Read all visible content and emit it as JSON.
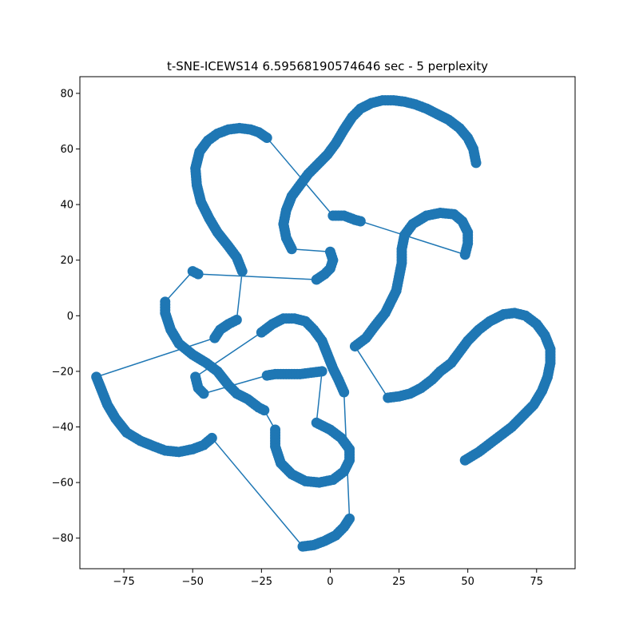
{
  "chart_data": {
    "type": "line",
    "title": "t-SNE-ICEWS14 6.59568190574646 sec  - 5 perplexity",
    "xlabel": "",
    "ylabel": "",
    "xlim": [
      -91,
      89
    ],
    "ylim": [
      -91,
      86
    ],
    "xticks": [
      -75,
      -50,
      -25,
      0,
      25,
      50,
      75
    ],
    "yticks": [
      -80,
      -60,
      -40,
      -20,
      0,
      20,
      40,
      60,
      80
    ],
    "xtick_labels": [
      "−75",
      "−50",
      "−25",
      "0",
      "25",
      "50",
      "75"
    ],
    "ytick_labels": [
      "−80",
      "−60",
      "−40",
      "−20",
      "0",
      "20",
      "40",
      "60",
      "80"
    ],
    "grid": false,
    "legend": "none",
    "color": "#1f77b4",
    "series": [
      {
        "marker": "circle",
        "points": [
          [
            53,
            55
          ],
          [
            52,
            60
          ],
          [
            50,
            64
          ],
          [
            47,
            67.5
          ],
          [
            43,
            70.5
          ],
          [
            39,
            72.5
          ],
          [
            35,
            74.5
          ],
          [
            31,
            76
          ],
          [
            27,
            77
          ],
          [
            23,
            77.5
          ],
          [
            19,
            77.5
          ],
          [
            15,
            76.5
          ],
          [
            11,
            74.5
          ],
          [
            8,
            71.5
          ],
          [
            5,
            67
          ],
          [
            2,
            62
          ],
          [
            -1,
            58
          ],
          [
            -5,
            54
          ],
          [
            -8,
            51
          ],
          [
            -11,
            47
          ],
          [
            -14,
            43
          ],
          [
            -16,
            38
          ],
          [
            -17,
            33
          ],
          [
            -16,
            28
          ],
          [
            -14,
            24
          ],
          [
            0,
            23
          ],
          [
            1,
            20
          ],
          [
            0,
            17
          ],
          [
            -2,
            15
          ],
          [
            -5,
            13
          ],
          [
            -48,
            15
          ],
          [
            -50,
            16
          ],
          [
            -60,
            5
          ],
          [
            -60,
            1
          ],
          [
            -58,
            -5
          ],
          [
            -55,
            -10
          ],
          [
            -50,
            -14
          ],
          [
            -45,
            -17
          ],
          [
            -41,
            -20
          ],
          [
            -37,
            -25
          ],
          [
            -34,
            -28
          ],
          [
            -30,
            -30
          ],
          [
            -26,
            -33
          ],
          [
            -24,
            -34
          ],
          [
            -20,
            -41
          ],
          [
            -20,
            -47
          ],
          [
            -18,
            -53
          ],
          [
            -14,
            -57
          ],
          [
            -9,
            -59.5
          ],
          [
            -4,
            -60
          ],
          [
            1,
            -59
          ],
          [
            5,
            -56
          ],
          [
            7,
            -52
          ],
          [
            7,
            -48
          ],
          [
            4,
            -44
          ],
          [
            0,
            -41
          ],
          [
            -5,
            -38.5
          ],
          [
            -3,
            -20
          ],
          [
            -7,
            -20.5
          ],
          [
            -11,
            -21
          ],
          [
            -15,
            -21
          ],
          [
            -20,
            -21
          ],
          [
            -23,
            -21.5
          ],
          [
            -46,
            -28
          ],
          [
            -48,
            -26
          ],
          [
            -49,
            -22
          ],
          [
            -25,
            -6
          ],
          [
            -21,
            -3
          ],
          [
            -17,
            -1
          ],
          [
            -13,
            -1
          ],
          [
            -9,
            -2
          ],
          [
            -6,
            -5
          ],
          [
            -3,
            -9
          ],
          [
            -1,
            -14
          ],
          [
            1,
            -19
          ],
          [
            3,
            -23
          ],
          [
            5,
            -27.5
          ],
          [
            7,
            -73
          ],
          [
            5,
            -76
          ],
          [
            2,
            -79
          ],
          [
            -2,
            -81
          ],
          [
            -6,
            -82.5
          ],
          [
            -10,
            -83
          ],
          [
            -43,
            -44
          ],
          [
            -46,
            -46.5
          ],
          [
            -50,
            -48
          ],
          [
            -55,
            -49
          ],
          [
            -60,
            -48.5
          ],
          [
            -64,
            -47
          ],
          [
            -69,
            -45
          ],
          [
            -74,
            -42
          ],
          [
            -78,
            -37
          ],
          [
            -81,
            -32
          ],
          [
            -83,
            -27
          ],
          [
            -85,
            -22
          ],
          [
            -42,
            -8
          ],
          [
            -40,
            -5
          ],
          [
            -37,
            -3
          ],
          [
            -34,
            -1.5
          ],
          [
            -32,
            16
          ],
          [
            -34,
            21
          ],
          [
            -37,
            25
          ],
          [
            -41,
            30
          ],
          [
            -44,
            35
          ],
          [
            -47,
            41
          ],
          [
            -48.5,
            47
          ],
          [
            -49,
            53
          ],
          [
            -47.5,
            59
          ],
          [
            -44.5,
            63
          ],
          [
            -41,
            65.5
          ],
          [
            -37,
            67
          ],
          [
            -33,
            67.5
          ],
          [
            -29,
            67
          ],
          [
            -26,
            66
          ],
          [
            -23,
            64
          ],
          [
            1,
            36
          ],
          [
            5,
            36
          ],
          [
            9,
            34.5
          ],
          [
            11,
            34
          ],
          [
            49,
            22
          ],
          [
            50,
            26
          ],
          [
            50,
            30
          ],
          [
            48,
            34
          ],
          [
            45,
            36.5
          ],
          [
            40,
            37
          ],
          [
            35,
            36
          ],
          [
            30,
            33
          ],
          [
            27,
            29
          ],
          [
            26,
            24
          ],
          [
            26,
            19
          ],
          [
            25,
            14
          ],
          [
            24,
            9
          ],
          [
            22,
            5
          ],
          [
            20,
            1
          ],
          [
            16,
            -4
          ],
          [
            13,
            -8
          ],
          [
            9,
            -11
          ],
          [
            21,
            -29.5
          ],
          [
            25,
            -29
          ],
          [
            29,
            -28
          ],
          [
            33,
            -26
          ],
          [
            37,
            -23
          ],
          [
            40,
            -20
          ],
          [
            44,
            -17
          ],
          [
            47,
            -13
          ],
          [
            50,
            -9
          ],
          [
            54,
            -5
          ],
          [
            58,
            -2
          ],
          [
            63,
            0.5
          ],
          [
            67,
            1
          ],
          [
            71,
            0
          ],
          [
            75,
            -3
          ],
          [
            78,
            -7
          ],
          [
            80,
            -12
          ],
          [
            80,
            -17
          ],
          [
            79,
            -22
          ],
          [
            77,
            -27
          ],
          [
            74,
            -32
          ],
          [
            70,
            -36
          ],
          [
            66,
            -40
          ],
          [
            62,
            -43
          ],
          [
            58,
            -46
          ],
          [
            54,
            -49
          ],
          [
            49,
            -52
          ]
        ]
      }
    ]
  }
}
